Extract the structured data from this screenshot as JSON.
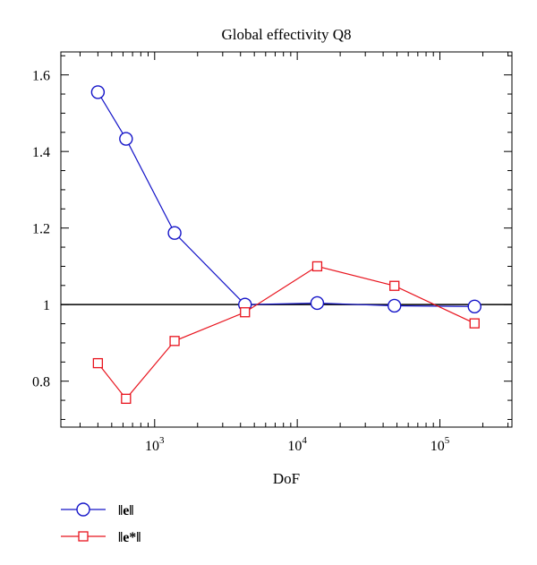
{
  "chart_data": {
    "type": "line",
    "title": "Global effectivity Q8",
    "xlabel": "DoF",
    "ylabel": "",
    "x_scale": "log",
    "xlim": [
      220,
      320000
    ],
    "ylim": [
      0.68,
      1.66
    ],
    "x_ticks": [
      {
        "value": 1000,
        "base": "10",
        "exp": "3"
      },
      {
        "value": 10000,
        "base": "10",
        "exp": "4"
      },
      {
        "value": 100000,
        "base": "10",
        "exp": "5"
      }
    ],
    "y_ticks": [
      {
        "value": 0.8,
        "label": "0.8"
      },
      {
        "value": 1.0,
        "label": "1"
      },
      {
        "value": 1.2,
        "label": "1.2"
      },
      {
        "value": 1.4,
        "label": "1.4"
      },
      {
        "value": 1.6,
        "label": "1.6"
      }
    ],
    "reference_line": {
      "y": 1.0,
      "color": "#000000"
    },
    "grid": false,
    "legend_position": "bottom-left",
    "series": [
      {
        "name": "‖e‖",
        "marker": "circle",
        "color": "#1414c8",
        "x": [
          400,
          630,
          1380,
          4300,
          13800,
          48000,
          175000
        ],
        "y": [
          1.555,
          1.433,
          1.187,
          1.0,
          1.004,
          0.997,
          0.995
        ]
      },
      {
        "name": "‖e*‖",
        "marker": "square",
        "color": "#e8141e",
        "x": [
          400,
          630,
          1380,
          4300,
          13800,
          48000,
          175000
        ],
        "y": [
          0.847,
          0.754,
          0.905,
          0.98,
          1.1,
          1.049,
          0.951
        ]
      }
    ]
  }
}
